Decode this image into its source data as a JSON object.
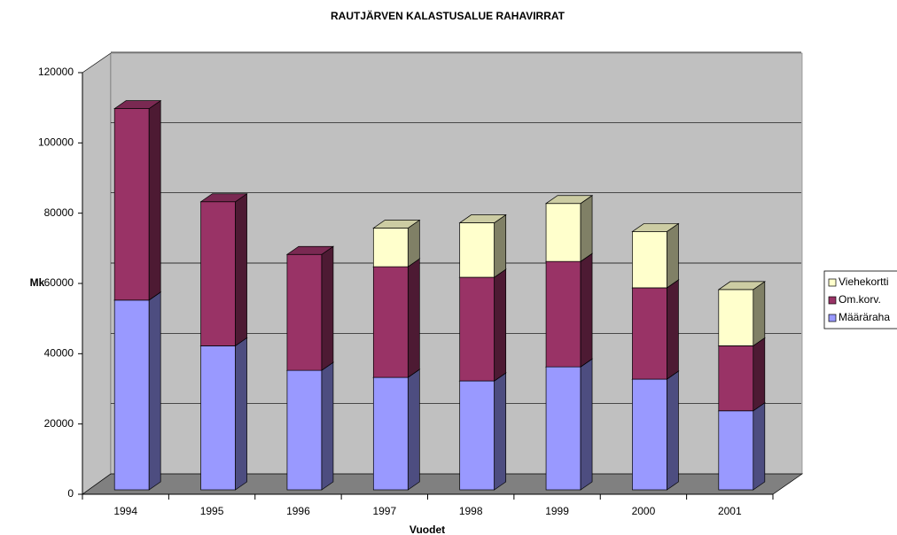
{
  "chart_data": {
    "type": "bar3d_stacked",
    "title": "RAUTJÄRVEN KALASTUSALUE RAHAVIRRAT",
    "x_label": "Vuodet",
    "y_label": "Mk",
    "categories": [
      "1994",
      "1995",
      "1996",
      "1997",
      "1998",
      "1999",
      "2000",
      "2001"
    ],
    "series": [
      {
        "name": "Määräraha",
        "color": "#9999ff",
        "values": [
          54000,
          41000,
          34000,
          32000,
          31000,
          35000,
          31500,
          22500
        ]
      },
      {
        "name": "Om.korv.",
        "color": "#993366",
        "values": [
          54500,
          41000,
          33000,
          31500,
          29500,
          30000,
          26000,
          18500
        ]
      },
      {
        "name": "Viehekortti",
        "color": "#ffffcc",
        "values": [
          0,
          0,
          0,
          11000,
          15500,
          16500,
          16000,
          16000
        ]
      }
    ],
    "ylim": [
      0,
      120000
    ],
    "yticks": [
      0,
      20000,
      40000,
      60000,
      80000,
      100000,
      120000
    ],
    "grid": true,
    "legend": "right"
  }
}
